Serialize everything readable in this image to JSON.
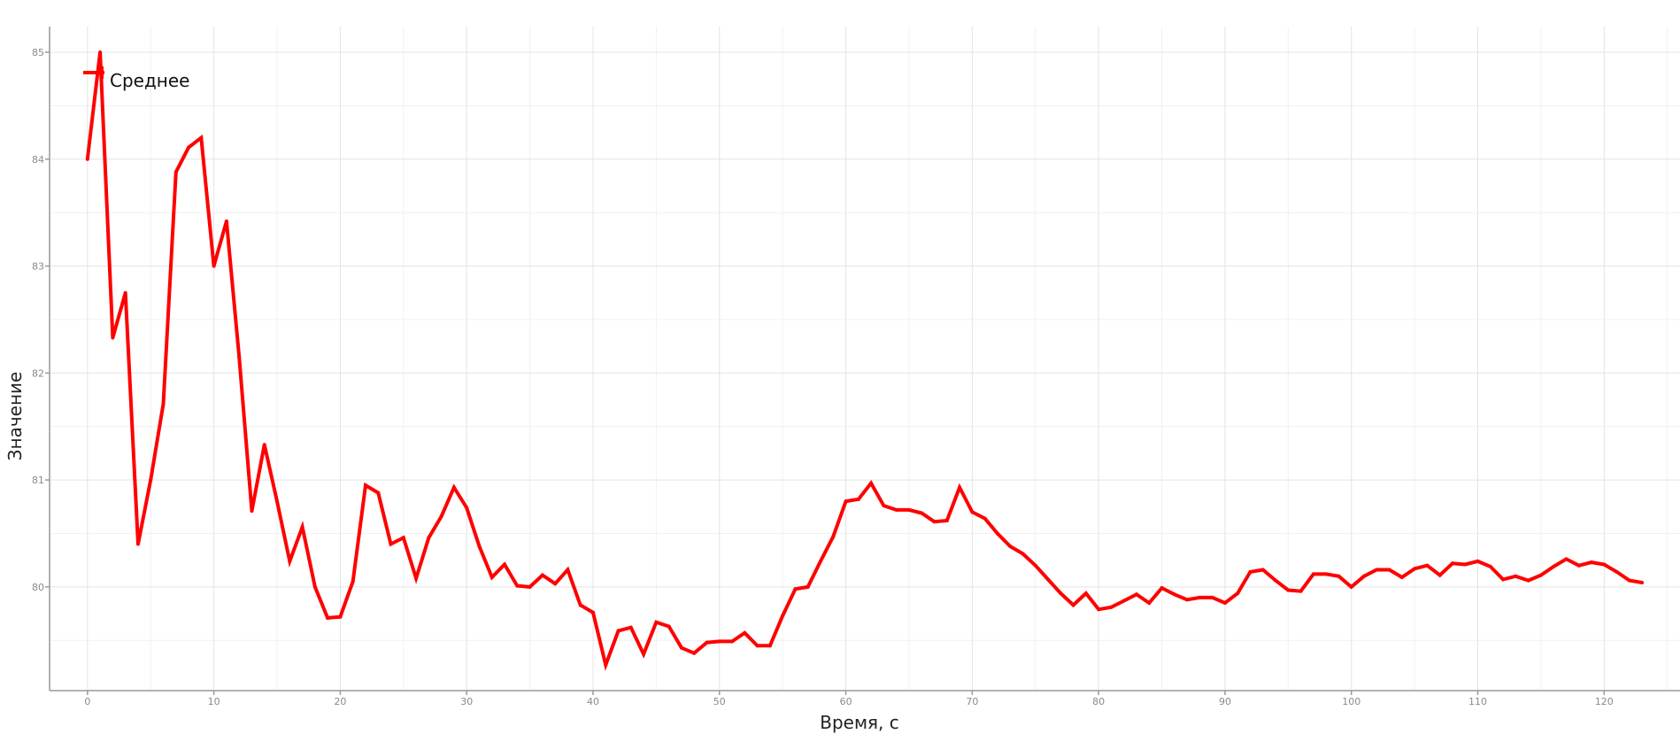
{
  "chart_data": {
    "type": "line",
    "title": "",
    "xlabel": "Время, с",
    "ylabel": "Значение",
    "xlim": [
      -3,
      126
    ],
    "ylim": [
      79.03,
      85.24
    ],
    "xticks": [
      0,
      10,
      20,
      30,
      40,
      50,
      60,
      70,
      80,
      90,
      100,
      110,
      120
    ],
    "yticks": [
      80,
      81,
      82,
      83,
      84,
      85
    ],
    "grid": true,
    "legend_position": "top-left",
    "series": [
      {
        "name": "Среднее",
        "color": "#ff0000",
        "x": [
          0,
          1,
          2,
          3,
          4,
          5,
          6,
          7,
          8,
          9,
          10,
          11,
          12,
          13,
          14,
          15,
          16,
          17,
          18,
          19,
          20,
          21,
          22,
          23,
          24,
          25,
          26,
          27,
          28,
          29,
          30,
          31,
          32,
          33,
          34,
          35,
          36,
          37,
          38,
          39,
          40,
          41,
          42,
          43,
          44,
          45,
          46,
          47,
          48,
          49,
          50,
          51,
          52,
          53,
          54,
          55,
          56,
          57,
          58,
          59,
          60,
          61,
          62,
          63,
          64,
          65,
          66,
          67,
          68,
          69,
          70,
          71,
          72,
          73,
          74,
          75,
          76,
          77,
          78,
          79,
          80,
          81,
          82,
          83,
          84,
          85,
          86,
          87,
          88,
          89,
          90,
          91,
          92,
          93,
          94,
          95,
          96,
          97,
          98,
          99,
          100,
          101,
          102,
          103,
          104,
          105,
          106,
          107,
          108,
          109,
          110,
          111,
          112,
          113,
          114,
          115,
          116,
          117,
          118,
          119,
          120,
          121,
          122,
          123
        ],
        "y": [
          84.0,
          85.0,
          82.33,
          82.75,
          80.4,
          81.0,
          81.71,
          83.88,
          84.11,
          84.2,
          83.0,
          83.42,
          82.15,
          80.71,
          81.33,
          80.8,
          80.24,
          80.56,
          80.0,
          79.71,
          79.72,
          80.05,
          80.95,
          80.88,
          80.4,
          80.46,
          80.08,
          80.46,
          80.66,
          80.93,
          80.74,
          80.38,
          80.09,
          80.21,
          80.01,
          80.0,
          80.11,
          80.03,
          80.16,
          79.83,
          79.76,
          79.27,
          79.59,
          79.62,
          79.37,
          79.67,
          79.63,
          79.43,
          79.38,
          79.48,
          79.49,
          79.49,
          79.57,
          79.45,
          79.45,
          79.73,
          79.98,
          80.0,
          80.24,
          80.47,
          80.8,
          80.82,
          80.97,
          80.76,
          80.72,
          80.72,
          80.69,
          80.61,
          80.62,
          80.93,
          80.7,
          80.64,
          80.5,
          80.38,
          80.31,
          80.2,
          80.07,
          79.94,
          79.83,
          79.94,
          79.79,
          79.81,
          79.87,
          79.93,
          79.85,
          79.99,
          79.93,
          79.88,
          79.9,
          79.9,
          79.85,
          79.94,
          80.14,
          80.16,
          80.06,
          79.97,
          79.96,
          80.12,
          80.12,
          80.1,
          80.0,
          80.1,
          80.16,
          80.16,
          80.09,
          80.17,
          80.2,
          80.11,
          80.22,
          80.21,
          80.24,
          80.19,
          80.07,
          80.1,
          80.06,
          80.11,
          80.19,
          80.26,
          80.2,
          80.23,
          80.21,
          80.14,
          80.06,
          80.04
        ]
      }
    ]
  }
}
